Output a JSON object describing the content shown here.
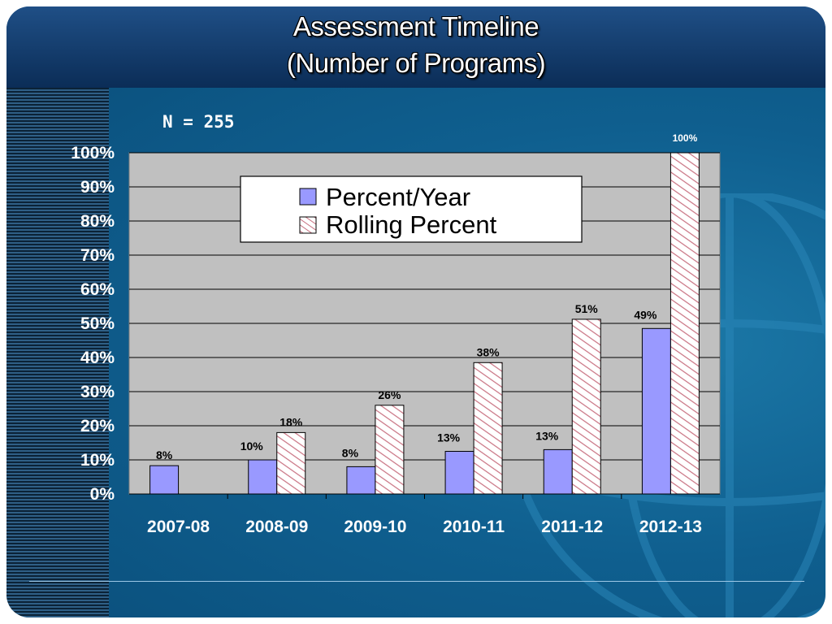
{
  "slide": {
    "title_line1": "Assessment Timeline",
    "title_line2": "(Number of Programs)",
    "n_label": "N = 255"
  },
  "colors": {
    "header": "#123d6e",
    "background": "#0f5f8f",
    "plot_area": "#c0c0c0",
    "percent_year_fill": "#9999ff",
    "rolling_fill": "#ffffff",
    "rolling_hatch": "#c06070"
  },
  "chart_data": {
    "type": "bar",
    "title": "",
    "xlabel": "",
    "ylabel": "",
    "categories": [
      "2007-08",
      "2008-09",
      "2009-10",
      "2010-11",
      "2011-12",
      "2012-13"
    ],
    "ylim": [
      0,
      100
    ],
    "y_ticks": [
      "0%",
      "10%",
      "20%",
      "30%",
      "40%",
      "50%",
      "60%",
      "70%",
      "80%",
      "90%",
      "100%"
    ],
    "grid": true,
    "legend_position": "top-center",
    "series": [
      {
        "name": "Percent/Year",
        "values": [
          8.3,
          10,
          8,
          12.5,
          13,
          48.5
        ],
        "labels": [
          "8%",
          "10%",
          "8%",
          "13%",
          "13%",
          "49%"
        ]
      },
      {
        "name": "Rolling Percent",
        "values": [
          null,
          18,
          26,
          38.5,
          51.2,
          100
        ],
        "labels": [
          "",
          "18%",
          "26%",
          "38%",
          "51%",
          "100%"
        ]
      }
    ]
  }
}
